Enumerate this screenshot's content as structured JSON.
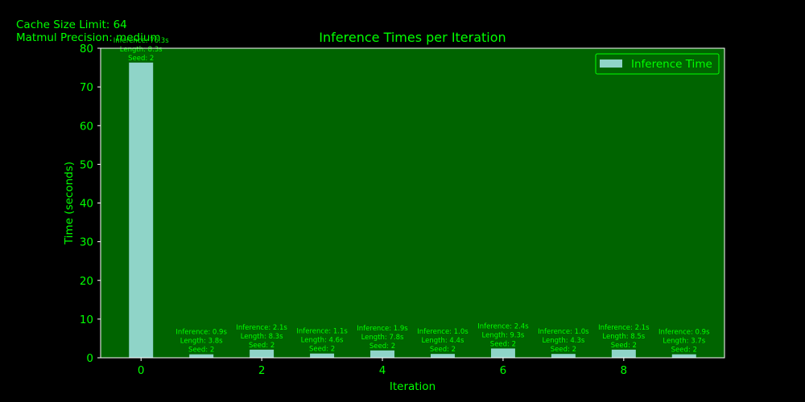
{
  "header": {
    "cache_line": "Cache Size Limit: 64",
    "precision_line": "Matmul Precision: medium"
  },
  "colors": {
    "background": "#000000",
    "plot_area": "#006400",
    "bar": "#8fd4c8",
    "text": "#00ff00",
    "axes": "#ffffff"
  },
  "chart_data": {
    "type": "bar",
    "title": "Inference Times per Iteration",
    "xlabel": "Iteration",
    "ylabel": "Time (seconds)",
    "xlim": [
      -0.67,
      9.67
    ],
    "ylim": [
      0,
      80
    ],
    "xticks": [
      0,
      2,
      4,
      6,
      8
    ],
    "yticks": [
      0,
      10,
      20,
      30,
      40,
      50,
      60,
      70,
      80
    ],
    "grid": false,
    "legend": {
      "position": "top-right",
      "entries": [
        "Inference Time"
      ]
    },
    "x": [
      0,
      1,
      2,
      3,
      4,
      5,
      6,
      7,
      8,
      9
    ],
    "series": [
      {
        "name": "Inference Time",
        "values": [
          76.3,
          0.9,
          2.1,
          1.1,
          1.9,
          1.0,
          2.4,
          1.0,
          2.1,
          0.9
        ]
      }
    ],
    "annotations": [
      [
        "Inference: 76.3s",
        "Length: 8.3s",
        "Seed: 2"
      ],
      [
        "Inference: 0.9s",
        "Length: 3.8s",
        "Seed: 2"
      ],
      [
        "Inference: 2.1s",
        "Length: 8.3s",
        "Seed: 2"
      ],
      [
        "Inference: 1.1s",
        "Length: 4.6s",
        "Seed: 2"
      ],
      [
        "Inference: 1.9s",
        "Length: 7.8s",
        "Seed: 2"
      ],
      [
        "Inference: 1.0s",
        "Length: 4.4s",
        "Seed: 2"
      ],
      [
        "Inference: 2.4s",
        "Length: 9.3s",
        "Seed: 2"
      ],
      [
        "Inference: 1.0s",
        "Length: 4.3s",
        "Seed: 2"
      ],
      [
        "Inference: 2.1s",
        "Length: 8.5s",
        "Seed: 2"
      ],
      [
        "Inference: 0.9s",
        "Length: 3.7s",
        "Seed: 2"
      ]
    ]
  }
}
